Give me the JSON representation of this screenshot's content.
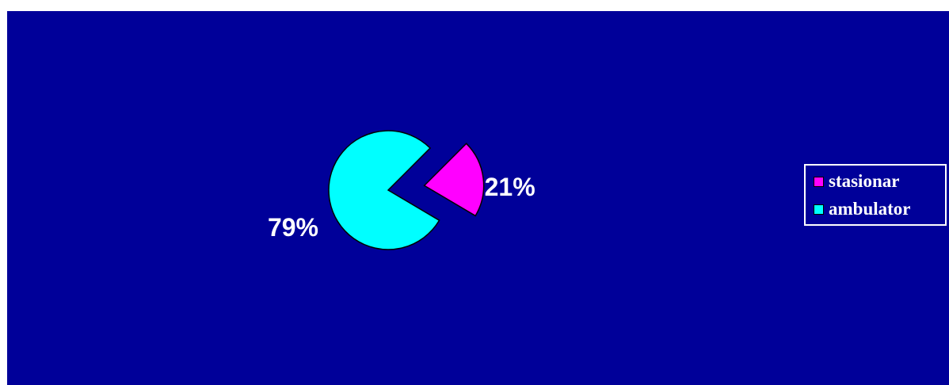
{
  "chart_data": {
    "type": "pie",
    "categories": [
      "stasionar",
      "ambulator"
    ],
    "values": [
      21,
      79
    ],
    "labels": [
      "21%",
      "79%"
    ],
    "colors": [
      "#ff00ff",
      "#00ffff"
    ],
    "exploded": true,
    "legend_position": "right",
    "background_color": "#000099"
  }
}
